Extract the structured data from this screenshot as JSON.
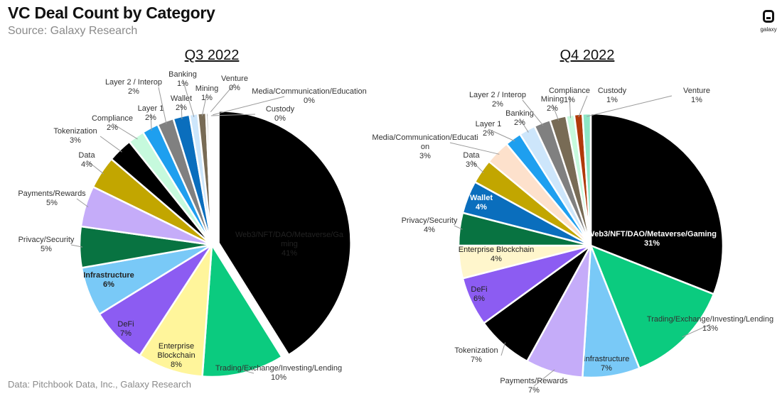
{
  "header": {
    "title": "VC Deal Count by Category",
    "subtitle": "Source: Galaxy Research"
  },
  "footer": {
    "note": "Data: Pitchbook Data, Inc., Galaxy Research"
  },
  "logo": {
    "text": "galaxy"
  },
  "chart_data": [
    {
      "type": "pie",
      "title": "Q3 2022",
      "start_angle_deg": 0,
      "slices": [
        {
          "label": "Web3/NFT/DAO/Metaverse/Gaming",
          "value": 41,
          "display": "41%",
          "color": "#000000",
          "exploded": true
        },
        {
          "label": "Trading/Exchange/Investing/Lending",
          "value": 10,
          "display": "10%",
          "color": "#0BCB7F"
        },
        {
          "label": "Enterprise Blockchain",
          "value": 8,
          "display": "8%",
          "color": "#FFF59B"
        },
        {
          "label": "DeFi",
          "value": 7,
          "display": "7%",
          "color": "#8C5CF2"
        },
        {
          "label": "Infrastructure",
          "value": 6,
          "display": "6%",
          "color": "#79C9F7"
        },
        {
          "label": "Privacy/Security",
          "value": 5,
          "display": "5%",
          "color": "#087341"
        },
        {
          "label": "Payments/Rewards",
          "value": 5,
          "display": "5%",
          "color": "#C5ACF9"
        },
        {
          "label": "Data",
          "value": 4,
          "display": "4%",
          "color": "#C2A600"
        },
        {
          "label": "Tokenization",
          "value": 3,
          "display": "3%",
          "color": "#000000"
        },
        {
          "label": "Compliance",
          "value": 2,
          "display": "2%",
          "color": "#C6FADD"
        },
        {
          "label": "Layer 1",
          "value": 2,
          "display": "2%",
          "color": "#1E9FEF"
        },
        {
          "label": "Layer 2 / Interop",
          "value": 2,
          "display": "2%",
          "color": "#808080"
        },
        {
          "label": "Wallet",
          "value": 2,
          "display": "2%",
          "color": "#0A6EBD"
        },
        {
          "label": "Banking",
          "value": 1,
          "display": "1%",
          "color": "#CDE6FB"
        },
        {
          "label": "Mining",
          "value": 1,
          "display": "1%",
          "color": "#786B55"
        },
        {
          "label": "Venture",
          "value": 0.3,
          "display": "0%",
          "color": "#B3B3B3"
        },
        {
          "label": "Media/Communication/Education",
          "value": 0.2,
          "display": "0%",
          "color": "#D9D9D9"
        },
        {
          "label": "Custody",
          "value": 0.2,
          "display": "0%",
          "color": "#A6A6A6"
        }
      ]
    },
    {
      "type": "pie",
      "title": "Q4 2022",
      "start_angle_deg": 0,
      "slices": [
        {
          "label": "Web3/NFT/DAO/Metaverse/Gaming",
          "value": 31,
          "display": "31%",
          "color": "#000000"
        },
        {
          "label": "Trading/Exchange/Investing/Lending",
          "value": 13,
          "display": "13%",
          "color": "#0BCB7F"
        },
        {
          "label": "Infrastructure",
          "value": 7,
          "display": "7%",
          "color": "#79C9F7"
        },
        {
          "label": "Payments/Rewards",
          "value": 7,
          "display": "7%",
          "color": "#C5ACF9"
        },
        {
          "label": "Tokenization",
          "value": 7,
          "display": "7%",
          "color": "#000000"
        },
        {
          "label": "DeFi",
          "value": 6,
          "display": "6%",
          "color": "#8C5CF2"
        },
        {
          "label": "Enterprise Blockchain",
          "value": 4,
          "display": "4%",
          "color": "#FFF6CC"
        },
        {
          "label": "Privacy/Security",
          "value": 4,
          "display": "4%",
          "color": "#087341"
        },
        {
          "label": "Wallet",
          "value": 4,
          "display": "4%",
          "color": "#0A6EBD"
        },
        {
          "label": "Data",
          "value": 3,
          "display": "3%",
          "color": "#C2A600"
        },
        {
          "label": "Media/Communication/Education",
          "value": 3,
          "display": "3%",
          "color": "#FDE1CC"
        },
        {
          "label": "Layer 1",
          "value": 2,
          "display": "2%",
          "color": "#1E9FEF"
        },
        {
          "label": "Banking",
          "value": 2,
          "display": "2%",
          "color": "#CDE6FB"
        },
        {
          "label": "Layer 2 / Interop",
          "value": 2,
          "display": "2%",
          "color": "#808080"
        },
        {
          "label": "Mining",
          "value": 2,
          "display": "2%",
          "color": "#786B55"
        },
        {
          "label": "Compliance",
          "value": 1,
          "display": "1%",
          "color": "#C6FADD"
        },
        {
          "label": "Custody",
          "value": 1,
          "display": "1%",
          "color": "#B03A0A"
        },
        {
          "label": "Venture",
          "value": 1,
          "display": "1%",
          "color": "#8DE6C4"
        }
      ]
    }
  ]
}
